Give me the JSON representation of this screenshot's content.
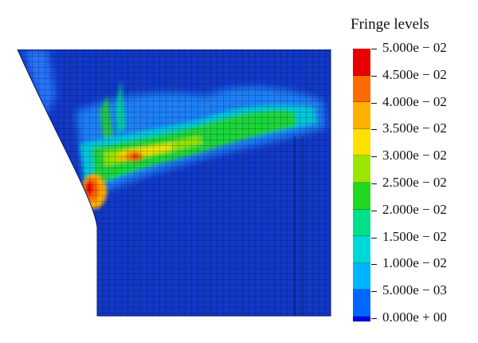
{
  "legend": {
    "title": "Fringe levels",
    "levels": [
      {
        "label": "5.000e − 02",
        "color": "#e60000"
      },
      {
        "label": "4.500e − 02",
        "color": "#ff6a00"
      },
      {
        "label": "4.000e − 02",
        "color": "#ffb000"
      },
      {
        "label": "3.500e − 02",
        "color": "#ffe000"
      },
      {
        "label": "3.000e − 02",
        "color": "#9be600"
      },
      {
        "label": "2.500e − 02",
        "color": "#1fd81f"
      },
      {
        "label": "2.000e − 02",
        "color": "#00e08c"
      },
      {
        "label": "1.500e − 02",
        "color": "#00d8d8"
      },
      {
        "label": "1.000e − 02",
        "color": "#00b4ff"
      },
      {
        "label": "5.000e − 03",
        "color": "#0066ff"
      },
      {
        "label": "0.000e + 00",
        "color": "#0000e6"
      }
    ]
  },
  "plot": {
    "background_color": "#1238c8",
    "mesh_color": "#000000"
  }
}
